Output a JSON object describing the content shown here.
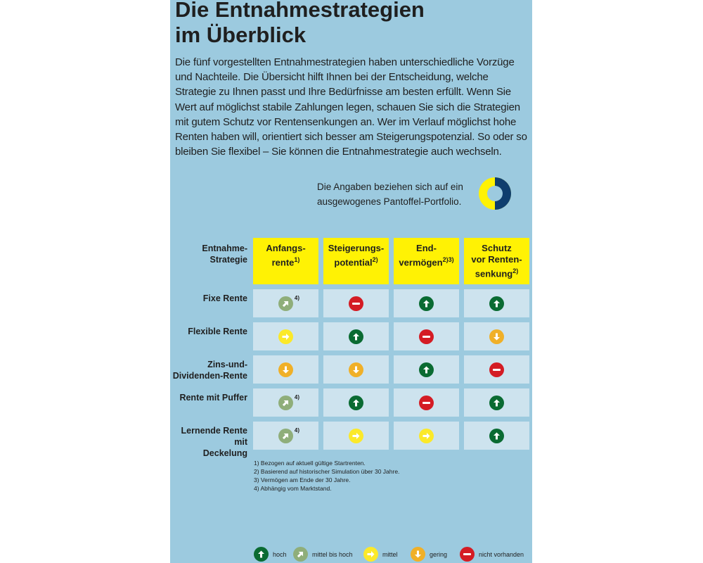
{
  "title_line1": "Die Entnahmestrategien",
  "title_line2": "im Überblick",
  "intro": "Die fünf vorgestellten Entnahmestrategien haben unterschiedliche Vorzüge und Nachteile. Die Übersicht hilft Ihnen bei der Entscheidung, welche Strategie zu Ihnen passt und Ihre Bedürfnisse am besten erfüllt. Wenn Sie Wert auf möglichst stabile Zahlungen legen, schauen Sie sich die Strategien mit gutem Schutz vor Rentensenkungen an. Wer im Verlauf möglichst hohe Renten haben will, orientiert sich besser am Steigerungspotenzial. So oder so bleiben Sie flexibel – Sie können die Entnahmestrategie auch wechseln.",
  "portfolio_note_line1": "Die Angaben beziehen sich auf ein",
  "portfolio_note_line2": "ausgewogenes Pantoffel-Portfolio.",
  "colors": {
    "yellow": "#fff204",
    "navy": "#0f3e6e",
    "background": "#9ccadf",
    "cell": "#cde3ee"
  },
  "table": {
    "corner_line1": "Entnahme-",
    "corner_line2": "Strategie",
    "columns": [
      {
        "line1": "Anfangs-",
        "line2": "rente",
        "sup": "1)"
      },
      {
        "line1": "Steigerungs-",
        "line2": "potential",
        "sup": "2)"
      },
      {
        "line1": "End-",
        "line2": "vermögen",
        "sup": "2)3)"
      },
      {
        "line1": "Schutz",
        "line2": "vor Renten-",
        "line3": "senkung",
        "sup": "2)"
      }
    ],
    "rows": [
      {
        "line1": "Fixe Rente",
        "line2": "",
        "ratings": [
          "mittel bis hoch",
          "nicht vorhanden",
          "hoch",
          "hoch"
        ],
        "note": "4)"
      },
      {
        "line1": "Flexible Rente",
        "line2": "",
        "ratings": [
          "mittel",
          "hoch",
          "nicht vorhanden",
          "gering"
        ],
        "note": ""
      },
      {
        "line1": "Zins-und-",
        "line2": "Dividenden-Rente",
        "ratings": [
          "gering",
          "gering",
          "hoch",
          "nicht vorhanden"
        ],
        "note": ""
      },
      {
        "line1": "Rente mit Puffer",
        "line2": "",
        "ratings": [
          "mittel bis hoch",
          "hoch",
          "nicht vorhanden",
          "hoch"
        ],
        "note": "4)"
      },
      {
        "line1": "Lernende Rente mit",
        "line2": "Deckelung",
        "ratings": [
          "mittel bis hoch",
          "mittel",
          "mittel",
          "hoch"
        ],
        "note": "4)"
      }
    ]
  },
  "footnotes": [
    "1) Bezogen auf aktuell gültige Startrenten.",
    "2) Basierend auf historischer Simulation über 30 Jahre.",
    "3) Vermögen am Ende der 30 Jahre.",
    "4) Abhängig vom Marktstand."
  ],
  "legend": {
    "hoch": "hoch",
    "mittel_bis_hoch": "mittel bis hoch",
    "mittel": "mittel",
    "gering": "gering",
    "nicht_vorhanden": "nicht vorhanden"
  },
  "rating_icons": {
    "hoch": "arrow-up-icon",
    "mittel bis hoch": "arrow-up-right-icon",
    "mittel": "arrow-right-icon",
    "gering": "arrow-down-icon",
    "nicht vorhanden": "minus-icon"
  }
}
